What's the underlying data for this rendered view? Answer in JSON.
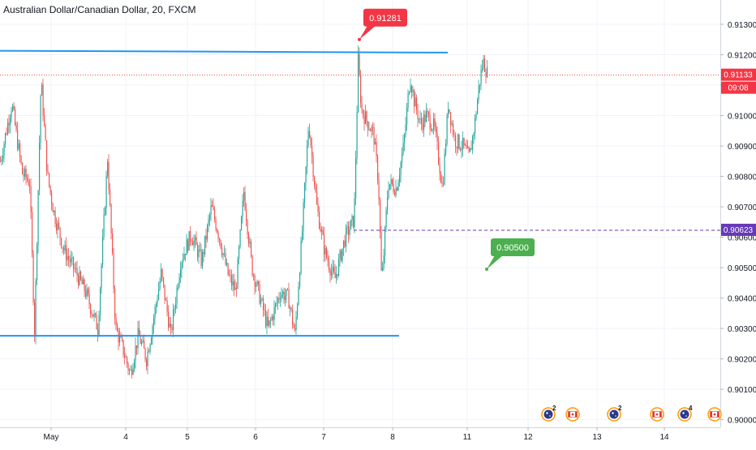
{
  "header": {
    "symbol_title": "Australian Dollar/Canadian Dollar, 20, FXCM"
  },
  "chart_data": {
    "type": "candlestick",
    "title": "Australian Dollar/Canadian Dollar, 20, FXCM",
    "y_axis": {
      "ticks": [
        "0.91300",
        "0.91200",
        "0.91100",
        "0.91000",
        "0.90900",
        "0.90800",
        "0.90700",
        "0.90600",
        "0.90500",
        "0.90400",
        "0.90300",
        "0.90200",
        "0.90100",
        "0.90000"
      ],
      "range": [
        0.89975,
        0.9138
      ]
    },
    "x_axis": {
      "ticks": [
        "May",
        "4",
        "5",
        "6",
        "7",
        "8",
        "11",
        "12",
        "13",
        "14"
      ]
    },
    "price_path": [
      [
        0,
        0.9085
      ],
      [
        5,
        0.9092
      ],
      [
        14,
        0.9104
      ],
      [
        20,
        0.9093
      ],
      [
        27,
        0.9081
      ],
      [
        36,
        0.9078
      ],
      [
        42,
        0.9029
      ],
      [
        50,
        0.9112
      ],
      [
        58,
        0.908
      ],
      [
        66,
        0.9068
      ],
      [
        78,
        0.9056
      ],
      [
        90,
        0.905
      ],
      [
        105,
        0.9042
      ],
      [
        120,
        0.903
      ],
      [
        132,
        0.9086
      ],
      [
        142,
        0.903
      ],
      [
        150,
        0.9024
      ],
      [
        160,
        0.9015
      ],
      [
        170,
        0.9028
      ],
      [
        180,
        0.902
      ],
      [
        188,
        0.9032
      ],
      [
        198,
        0.9048
      ],
      [
        210,
        0.9028
      ],
      [
        222,
        0.9052
      ],
      [
        235,
        0.9061
      ],
      [
        248,
        0.9052
      ],
      [
        260,
        0.907
      ],
      [
        270,
        0.906
      ],
      [
        280,
        0.9048
      ],
      [
        290,
        0.9042
      ],
      [
        300,
        0.9075
      ],
      [
        310,
        0.905
      ],
      [
        320,
        0.904
      ],
      [
        330,
        0.903
      ],
      [
        345,
        0.9042
      ],
      [
        355,
        0.904
      ],
      [
        363,
        0.9028
      ],
      [
        372,
        0.9062
      ],
      [
        380,
        0.9098
      ],
      [
        390,
        0.907
      ],
      [
        400,
        0.9055
      ],
      [
        412,
        0.9046
      ],
      [
        425,
        0.906
      ],
      [
        436,
        0.9066
      ],
      [
        441,
        0.9118
      ],
      [
        445,
        0.9102
      ],
      [
        452,
        0.9098
      ],
      [
        460,
        0.9094
      ],
      [
        466,
        0.9078
      ],
      [
        470,
        0.9044
      ],
      [
        478,
        0.9078
      ],
      [
        488,
        0.9076
      ],
      [
        497,
        0.909
      ],
      [
        505,
        0.9113
      ],
      [
        510,
        0.9105
      ],
      [
        518,
        0.9097
      ],
      [
        525,
        0.91
      ],
      [
        535,
        0.9096
      ],
      [
        545,
        0.9076
      ],
      [
        552,
        0.9104
      ],
      [
        560,
        0.9092
      ],
      [
        570,
        0.909
      ],
      [
        578,
        0.9086
      ],
      [
        585,
        0.9098
      ],
      [
        590,
        0.911
      ],
      [
        595,
        0.9118
      ],
      [
        601,
        0.91133
      ]
    ],
    "horizontal_lines": [
      {
        "name": "resistance",
        "from_index": 0,
        "to_index": 552,
        "y_start": 0.91213,
        "y_end": 0.91207,
        "color": "#2196f3"
      },
      {
        "name": "support",
        "from_index": 0,
        "to_index": 492,
        "y_start": 0.90276,
        "y_end": 0.90276,
        "color": "#2196f3"
      },
      {
        "name": "last-price-line",
        "from_index": 0,
        "to_index": 888,
        "y_start": 0.91133,
        "y_end": 0.91133,
        "color": "#f44336",
        "style": "dotted"
      },
      {
        "name": "level-line",
        "from_index": 436,
        "to_index": 888,
        "y_start": 0.90623,
        "y_end": 0.90623,
        "color": "#673ab7",
        "style": "dashed"
      }
    ],
    "annotations": [
      {
        "name": "high-callout",
        "text": "0.91281",
        "anchor_index": 443,
        "anchor_price": 0.9125,
        "color": "#f23645"
      },
      {
        "name": "target-callout",
        "text": "0.90500",
        "anchor_index": 600,
        "anchor_price": 0.90495,
        "color": "#4caf50"
      }
    ],
    "axis_labels": [
      {
        "name": "last-price-label",
        "text": "0.91133",
        "price": 0.91133,
        "color": "#f23645"
      },
      {
        "name": "countdown-label",
        "text": "09:08",
        "price": 0.91133,
        "color": "#f23645"
      },
      {
        "name": "level-label",
        "text": "0.90623",
        "price": 0.90623,
        "color": "#673ab7"
      }
    ],
    "events": [
      {
        "name": "event-au-2",
        "flag": "au",
        "count": "2",
        "index": 676
      },
      {
        "name": "event-ca",
        "flag": "ca",
        "count": "",
        "index": 706
      },
      {
        "name": "event-au-2b",
        "flag": "au",
        "count": "2",
        "index": 757
      },
      {
        "name": "event-ca-b",
        "flag": "ca",
        "count": "",
        "index": 810
      },
      {
        "name": "event-au-4",
        "flag": "au",
        "count": "4",
        "index": 844
      },
      {
        "name": "event-ca-c",
        "flag": "ca",
        "count": "",
        "index": 881
      }
    ],
    "colors": {
      "up": "#26a69a",
      "down": "#ef5350",
      "grid": "#f0f3fa",
      "axis_text": "#131722"
    },
    "grid": true
  }
}
